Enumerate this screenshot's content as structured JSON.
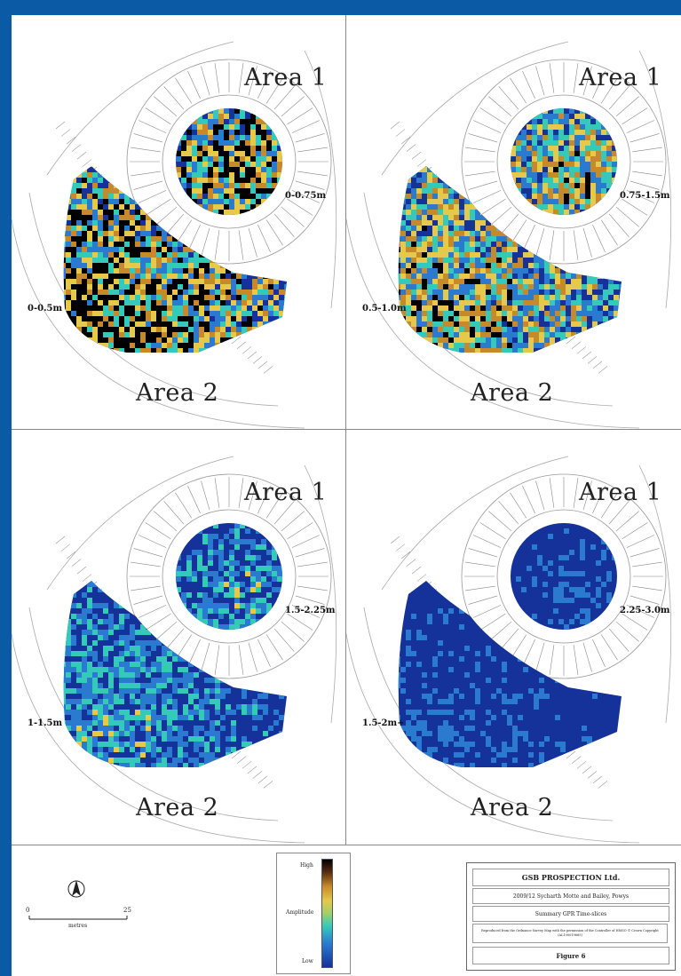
{
  "panels": [
    {
      "area1": "Area 1",
      "area2": "Area 2",
      "depth1": "0-0.75m",
      "depth2": "0-0.5m"
    },
    {
      "area1": "Area 1",
      "area2": "Area 2",
      "depth1": "0.75-1.5m",
      "depth2": "0.5-1.0m"
    },
    {
      "area1": "Area 1",
      "area2": "Area 2",
      "depth1": "1.5-2.25m",
      "depth2": "1-1.5m"
    },
    {
      "area1": "Area 1",
      "area2": "Area 2",
      "depth1": "2.25-3.0m",
      "depth2": "1.5-2m+"
    }
  ],
  "scale": {
    "start": "0",
    "end": "25",
    "unit": "metres"
  },
  "color_key": {
    "high": "High",
    "mid": "Amplitude",
    "low": "Low"
  },
  "title_block": {
    "company": "GSB PROSPECTION Ltd.",
    "project": "2009/12  Sycharth Motte and Bailey, Powys",
    "subject": "Summary GPR Time-slices",
    "copyright": "Reproduced from the Ordnance Survey Map with the permission of the Controller of HMSO © Crown Copyright (AL100019665)",
    "figure": "Figure 6"
  },
  "colors": {
    "frame": "#0b5aa6",
    "low": "#15329a",
    "mid_low": "#2a7bd0",
    "mid": "#35c9b9",
    "mid_high": "#e6c84a",
    "high": "#000000"
  },
  "anomaly_levels": [
    0.62,
    0.5,
    0.32,
    0.22
  ]
}
